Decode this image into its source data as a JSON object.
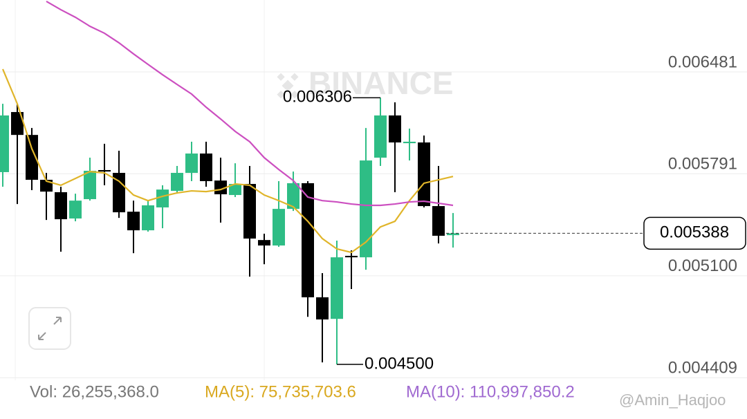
{
  "watermark": "BINANCE",
  "chart_data": {
    "type": "candlestick",
    "candles": [
      {
        "open": 0.005802,
        "high": 0.006265,
        "low": 0.005703,
        "close": 0.006186
      },
      {
        "open": 0.006209,
        "high": 0.006265,
        "low": 0.005586,
        "close": 0.006054
      },
      {
        "open": 0.006054,
        "high": 0.006101,
        "low": 0.00568,
        "close": 0.00575
      },
      {
        "open": 0.00575,
        "high": 0.005797,
        "low": 0.005478,
        "close": 0.00567
      },
      {
        "open": 0.005666,
        "high": 0.005703,
        "low": 0.005263,
        "close": 0.005483
      },
      {
        "open": 0.005488,
        "high": 0.005656,
        "low": 0.005469,
        "close": 0.005609
      },
      {
        "open": 0.005619,
        "high": 0.0059,
        "low": 0.005609,
        "close": 0.005811
      },
      {
        "open": 0.005816,
        "high": 0.005994,
        "low": 0.005713,
        "close": 0.005806
      },
      {
        "open": 0.005797,
        "high": 0.005947,
        "low": 0.005492,
        "close": 0.00553
      },
      {
        "open": 0.005534,
        "high": 0.005609,
        "low": 0.005253,
        "close": 0.005408
      },
      {
        "open": 0.005408,
        "high": 0.005609,
        "low": 0.005399,
        "close": 0.005577
      },
      {
        "open": 0.005563,
        "high": 0.005713,
        "low": 0.005422,
        "close": 0.005684
      },
      {
        "open": 0.005675,
        "high": 0.005844,
        "low": 0.005656,
        "close": 0.005797
      },
      {
        "open": 0.005797,
        "high": 0.006008,
        "low": 0.005741,
        "close": 0.005928
      },
      {
        "open": 0.005928,
        "high": 0.006008,
        "low": 0.005703,
        "close": 0.005741
      },
      {
        "open": 0.005745,
        "high": 0.0059,
        "low": 0.00546,
        "close": 0.005652
      },
      {
        "open": 0.005647,
        "high": 0.005862,
        "low": 0.005633,
        "close": 0.005722
      },
      {
        "open": 0.005722,
        "high": 0.005844,
        "low": 0.005094,
        "close": 0.005352
      },
      {
        "open": 0.005342,
        "high": 0.005385,
        "low": 0.005178,
        "close": 0.005305
      },
      {
        "open": 0.005305,
        "high": 0.005741,
        "low": 0.005296,
        "close": 0.005553
      },
      {
        "open": 0.005553,
        "high": 0.005806,
        "low": 0.005539,
        "close": 0.005727
      },
      {
        "open": 0.005727,
        "high": 0.005741,
        "low": 0.004822,
        "close": 0.004954
      },
      {
        "open": 0.004954,
        "high": 0.005118,
        "low": 0.004513,
        "close": 0.004804
      },
      {
        "open": 0.004808,
        "high": 0.005338,
        "low": 0.0045,
        "close": 0.005225
      },
      {
        "open": 0.005235,
        "high": 0.005272,
        "low": 0.00501,
        "close": 0.005225
      },
      {
        "open": 0.005225,
        "high": 0.006101,
        "low": 0.005141,
        "close": 0.005881
      },
      {
        "open": 0.0059,
        "high": 0.006306,
        "low": 0.005844,
        "close": 0.006186
      },
      {
        "open": 0.006186,
        "high": 0.006275,
        "low": 0.005666,
        "close": 0.006003
      },
      {
        "open": 0.005998,
        "high": 0.006097,
        "low": 0.005881,
        "close": 0.006008
      },
      {
        "open": 0.006003,
        "high": 0.00605,
        "low": 0.005563,
        "close": 0.005572
      },
      {
        "open": 0.005572,
        "high": 0.005844,
        "low": 0.005319,
        "close": 0.005371
      },
      {
        "open": 0.005375,
        "high": 0.005525,
        "low": 0.005291,
        "close": 0.005388
      }
    ],
    "up_color": "#2ebd85",
    "down_color": "#000000",
    "lines": [
      {
        "color": "#e0b52a",
        "values": [
          0.0065,
          0.006265,
          0.005961,
          0.005741,
          0.005713,
          0.005759,
          0.005806,
          0.005797,
          0.005741,
          0.005647,
          0.005609,
          0.005638,
          0.005661,
          0.005675,
          0.00567,
          0.005684,
          0.005722,
          0.005713,
          0.005647,
          0.005609,
          0.005567,
          0.005469,
          0.005352,
          0.005282,
          0.005258,
          0.005328,
          0.005431,
          0.005469,
          0.005609,
          0.005727,
          0.00575,
          0.005773
        ]
      },
      {
        "color": "#cc4fc0",
        "values": [
          null,
          null,
          null,
          0.006959,
          0.006902,
          0.006851,
          0.00679,
          0.006743,
          0.006678,
          0.006603,
          0.006532,
          0.006462,
          0.006396,
          0.006331,
          0.006242,
          0.006162,
          0.006078,
          0.006008,
          0.0059,
          0.00582,
          0.005745,
          0.005633,
          0.005609,
          0.0056,
          0.005586,
          0.005577,
          0.005577,
          0.005586,
          0.0056,
          0.005605,
          0.005591,
          0.005577
        ]
      }
    ],
    "ylim": [
      0.004392,
      0.006968
    ],
    "yticks": [
      0.006481,
      0.005791,
      {
        "value": 0.0051,
        "label": "0.005100"
      },
      0.004409
    ],
    "grid": true,
    "current_price": 0.005388,
    "annotations": [
      {
        "value": 0.006306,
        "label": "0.006306"
      },
      {
        "value": 0.0045,
        "label": "0.004500"
      }
    ]
  },
  "footer": {
    "volume": "Vol: 26,255,368.0",
    "ma5": "MA(5): 75,735,703.6",
    "ma10": "MA(10): 110,997,850.2",
    "credit": "@Amin_Haqjoo"
  }
}
